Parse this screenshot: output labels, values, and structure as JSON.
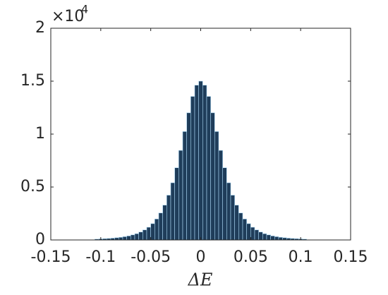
{
  "chart_data": {
    "type": "histogram",
    "xlabel": "ΔE",
    "y_multiplier": "×10",
    "y_multiplier_exponent": 4,
    "bins": [
      -0.106,
      -0.102,
      -0.098,
      -0.094,
      -0.09,
      -0.086,
      -0.082,
      -0.078,
      -0.074,
      -0.07,
      -0.066,
      -0.062,
      -0.058,
      -0.054,
      -0.05,
      -0.046,
      -0.042,
      -0.038,
      -0.034,
      -0.03,
      -0.026,
      -0.022,
      -0.018,
      -0.014,
      -0.01,
      -0.006,
      -0.002,
      0.002,
      0.006,
      0.01,
      0.014,
      0.018,
      0.022,
      0.026,
      0.03,
      0.034,
      0.038,
      0.042,
      0.046,
      0.05,
      0.054,
      0.058,
      0.062,
      0.066,
      0.07,
      0.074,
      0.078,
      0.082,
      0.086,
      0.09,
      0.094,
      0.098,
      0.102,
      0.106
    ],
    "values": [
      0.008,
      0.01,
      0.012,
      0.014,
      0.017,
      0.021,
      0.025,
      0.031,
      0.038,
      0.048,
      0.059,
      0.075,
      0.095,
      0.12,
      0.154,
      0.198,
      0.255,
      0.329,
      0.423,
      0.54,
      0.682,
      0.846,
      1.024,
      1.201,
      1.356,
      1.462,
      1.5,
      1.462,
      1.356,
      1.201,
      1.024,
      0.846,
      0.682,
      0.54,
      0.423,
      0.329,
      0.255,
      0.198,
      0.154,
      0.12,
      0.095,
      0.075,
      0.059,
      0.048,
      0.038,
      0.031,
      0.025,
      0.021,
      0.017,
      0.014,
      0.012,
      0.01,
      0.008
    ],
    "color": "#1f3d5a",
    "edge_color": "#a9d6f2",
    "xlim": [
      -0.15,
      0.15
    ],
    "xticks": [
      -0.15,
      -0.1,
      -0.05,
      0,
      0.05,
      0.1,
      0.15
    ],
    "ylim": [
      0,
      2
    ],
    "yticks": [
      0,
      0.5,
      1,
      1.5,
      2
    ]
  }
}
